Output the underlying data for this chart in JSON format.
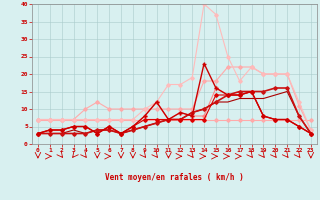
{
  "xlabel": "Vent moyen/en rafales ( km/h )",
  "xlim": [
    -0.5,
    23.5
  ],
  "ylim": [
    0,
    40
  ],
  "xticks": [
    0,
    1,
    2,
    3,
    4,
    5,
    6,
    7,
    8,
    9,
    10,
    11,
    12,
    13,
    14,
    15,
    16,
    17,
    18,
    19,
    20,
    21,
    22,
    23
  ],
  "yticks": [
    0,
    5,
    10,
    15,
    20,
    25,
    30,
    35,
    40
  ],
  "bg_color": "#d8f0f0",
  "grid_color": "#aacccc",
  "series": [
    {
      "y": [
        7,
        7,
        7,
        7,
        7,
        7,
        7,
        7,
        7,
        7,
        7,
        7,
        7,
        7,
        7,
        7,
        7,
        7,
        7,
        7,
        7,
        7,
        7,
        7
      ],
      "color": "#ffaaaa",
      "lw": 0.8,
      "marker": "D",
      "ms": 1.8,
      "zorder": 2
    },
    {
      "y": [
        7,
        7,
        7,
        7,
        10,
        12,
        10,
        10,
        10,
        10,
        10,
        10,
        10,
        10,
        18,
        18,
        22,
        22,
        22,
        20,
        20,
        20,
        11,
        4
      ],
      "color": "#ffaaaa",
      "lw": 0.8,
      "marker": "D",
      "ms": 1.8,
      "zorder": 2
    },
    {
      "y": [
        7,
        7,
        7,
        7,
        7,
        7,
        7,
        7,
        7,
        10,
        12,
        17,
        17,
        19,
        40,
        37,
        25,
        18,
        22,
        20,
        20,
        20,
        12,
        4
      ],
      "color": "#ffbbbb",
      "lw": 0.8,
      "marker": "D",
      "ms": 1.8,
      "zorder": 2
    },
    {
      "y": [
        3,
        4,
        4,
        5,
        5,
        3,
        5,
        3,
        5,
        8,
        12,
        7,
        9,
        8,
        8,
        16,
        14,
        14,
        15,
        8,
        7,
        7,
        5,
        3
      ],
      "color": "#ff8888",
      "lw": 0.8,
      "marker": "D",
      "ms": 1.8,
      "zorder": 3
    },
    {
      "y": [
        3,
        3,
        3,
        3,
        3,
        4,
        4,
        3,
        4,
        5,
        6,
        7,
        7,
        9,
        10,
        12,
        14,
        15,
        15,
        15,
        16,
        16,
        8,
        3
      ],
      "color": "#cc1111",
      "lw": 1.2,
      "marker": "D",
      "ms": 1.8,
      "zorder": 4
    },
    {
      "y": [
        3,
        4,
        4,
        5,
        5,
        3,
        5,
        3,
        5,
        7,
        7,
        7,
        7,
        7,
        7,
        14,
        14,
        14,
        15,
        8,
        7,
        7,
        5,
        3
      ],
      "color": "#dd0000",
      "lw": 0.8,
      "marker": "D",
      "ms": 1.8,
      "zorder": 4
    },
    {
      "y": [
        3,
        4,
        4,
        5,
        5,
        3,
        5,
        3,
        5,
        8,
        12,
        7,
        9,
        8,
        23,
        16,
        14,
        14,
        15,
        8,
        7,
        7,
        5,
        3
      ],
      "color": "#cc0000",
      "lw": 1.0,
      "marker": "+",
      "ms": 3.5,
      "zorder": 5
    },
    {
      "y": [
        3,
        3,
        3,
        4,
        3,
        4,
        4,
        3,
        4,
        5,
        6,
        7,
        7,
        9,
        10,
        12,
        12,
        13,
        13,
        13,
        14,
        15,
        8,
        3
      ],
      "color": "#aa0000",
      "lw": 0.8,
      "marker": null,
      "ms": 0,
      "zorder": 3
    }
  ],
  "arrow_color": "#cc0000",
  "arrow_directions": [
    2,
    4,
    3,
    1,
    3,
    2,
    4,
    2,
    2,
    3,
    3,
    2,
    4,
    3,
    4,
    4,
    4,
    4,
    3,
    3,
    3,
    3,
    3,
    2
  ]
}
